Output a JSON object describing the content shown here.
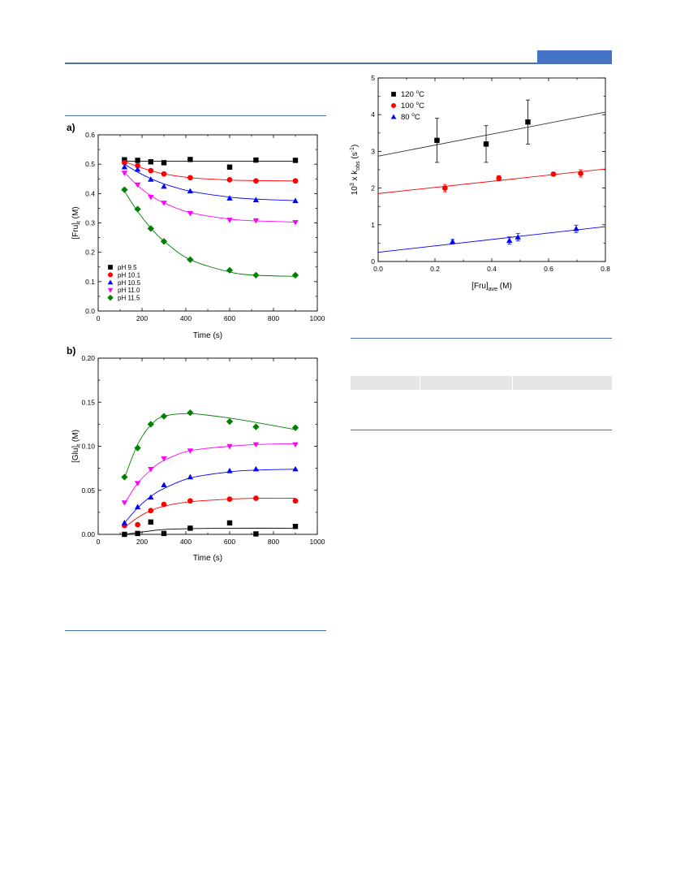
{
  "colors": {
    "rule": "#4a6fb0",
    "header_block": "#4472c4",
    "table_shade": "#e6e6e6"
  },
  "chart_data": [
    {
      "id": "a",
      "type": "scatter",
      "panel_label": "a)",
      "xlabel": "Time (s)",
      "ylabel_main": "[Fru]",
      "ylabel_sub": "t",
      "ylabel_unit": " (M)",
      "xlim": [
        0,
        1000
      ],
      "ylim": [
        0,
        0.6
      ],
      "xticks": [
        0,
        200,
        400,
        600,
        800,
        1000
      ],
      "yticks": [
        0.0,
        0.1,
        0.2,
        0.3,
        0.4,
        0.5,
        0.6
      ],
      "ytick_labels": [
        "0.0",
        "0.1",
        "0.2",
        "0.3",
        "0.4",
        "0.5",
        "0.6"
      ],
      "legend_position": "bottom-left",
      "grid": false,
      "series": [
        {
          "name": "pH 9.5",
          "marker": "square",
          "color": "#000000",
          "x": [
            120,
            180,
            240,
            300,
            420,
            600,
            720,
            900
          ],
          "y": [
            0.515,
            0.513,
            0.508,
            0.505,
            0.516,
            0.49,
            0.514,
            0.513
          ],
          "fit": [
            [
              120,
              0.51
            ],
            [
              900,
              0.51
            ]
          ]
        },
        {
          "name": "pH 10.1",
          "marker": "circle",
          "color": "#ff0000",
          "x": [
            120,
            180,
            240,
            300,
            420,
            600,
            720,
            900
          ],
          "y": [
            0.505,
            0.495,
            0.478,
            0.467,
            0.454,
            0.447,
            0.443,
            0.443
          ],
          "fit": [
            [
              120,
              0.509
            ],
            [
              180,
              0.492
            ],
            [
              240,
              0.478
            ],
            [
              300,
              0.467
            ],
            [
              420,
              0.454
            ],
            [
              600,
              0.446
            ],
            [
              720,
              0.444
            ],
            [
              900,
              0.443
            ]
          ]
        },
        {
          "name": "pH 10.5",
          "marker": "triangle-up",
          "color": "#0000ff",
          "x": [
            120,
            180,
            240,
            300,
            420,
            600,
            720,
            900
          ],
          "y": [
            0.49,
            0.482,
            0.448,
            0.424,
            0.408,
            0.384,
            0.378,
            0.375
          ],
          "fit": [
            [
              120,
              0.5
            ],
            [
              180,
              0.473
            ],
            [
              240,
              0.451
            ],
            [
              300,
              0.433
            ],
            [
              420,
              0.408
            ],
            [
              600,
              0.388
            ],
            [
              720,
              0.381
            ],
            [
              900,
              0.376
            ]
          ]
        },
        {
          "name": "pH 11.0",
          "marker": "triangle-down",
          "color": "#ff00ff",
          "x": [
            120,
            180,
            240,
            300,
            420,
            600,
            720,
            900
          ],
          "y": [
            0.47,
            0.43,
            0.388,
            0.368,
            0.333,
            0.31,
            0.308,
            0.302
          ],
          "fit": [
            [
              120,
              0.472
            ],
            [
              180,
              0.427
            ],
            [
              240,
              0.393
            ],
            [
              300,
              0.368
            ],
            [
              420,
              0.335
            ],
            [
              600,
              0.313
            ],
            [
              720,
              0.307
            ],
            [
              900,
              0.303
            ]
          ]
        },
        {
          "name": "pH 11.5",
          "marker": "diamond",
          "color": "#008000",
          "x": [
            120,
            180,
            240,
            300,
            420,
            600,
            720,
            900
          ],
          "y": [
            0.413,
            0.347,
            0.281,
            0.237,
            0.175,
            0.139,
            0.122,
            0.122
          ],
          "fit": [
            [
              120,
              0.408
            ],
            [
              180,
              0.339
            ],
            [
              240,
              0.283
            ],
            [
              300,
              0.238
            ],
            [
              420,
              0.175
            ],
            [
              600,
              0.133
            ],
            [
              720,
              0.122
            ],
            [
              900,
              0.118
            ]
          ]
        }
      ]
    },
    {
      "id": "b",
      "type": "scatter",
      "panel_label": "b)",
      "xlabel": "Time (s)",
      "ylabel_main": "[Glu]",
      "ylabel_sub": "t",
      "ylabel_unit": " (M)",
      "xlim": [
        0,
        1000
      ],
      "ylim": [
        0,
        0.2
      ],
      "xticks": [
        0,
        200,
        400,
        600,
        800,
        1000
      ],
      "yticks": [
        0.0,
        0.05,
        0.1,
        0.15,
        0.2
      ],
      "ytick_labels": [
        "0.00",
        "0.05",
        "0.10",
        "0.15",
        "0.20"
      ],
      "grid": false,
      "series": [
        {
          "name": "pH 9.5",
          "marker": "square",
          "color": "#000000",
          "x": [
            120,
            180,
            240,
            300,
            420,
            600,
            720,
            900
          ],
          "y": [
            0.0,
            0.001,
            0.014,
            0.001,
            0.007,
            0.013,
            0.0005,
            0.009
          ],
          "fit": [
            [
              120,
              0.0
            ],
            [
              180,
              0.002
            ],
            [
              240,
              0.004
            ],
            [
              300,
              0.0055
            ],
            [
              420,
              0.0065
            ],
            [
              600,
              0.007
            ],
            [
              900,
              0.007
            ]
          ]
        },
        {
          "name": "pH 10.1",
          "marker": "circle",
          "color": "#ff0000",
          "x": [
            120,
            180,
            240,
            300,
            420,
            600,
            720,
            900
          ],
          "y": [
            0.01,
            0.011,
            0.027,
            0.034,
            0.038,
            0.04,
            0.041,
            0.038
          ],
          "fit": [
            [
              120,
              0.008
            ],
            [
              180,
              0.019
            ],
            [
              240,
              0.027
            ],
            [
              300,
              0.032
            ],
            [
              420,
              0.037
            ],
            [
              600,
              0.04
            ],
            [
              720,
              0.041
            ],
            [
              900,
              0.041
            ]
          ]
        },
        {
          "name": "pH 10.5",
          "marker": "triangle-up",
          "color": "#0000ff",
          "x": [
            120,
            180,
            240,
            300,
            420,
            600,
            720,
            900
          ],
          "y": [
            0.013,
            0.031,
            0.042,
            0.056,
            0.065,
            0.072,
            0.074,
            0.074
          ],
          "fit": [
            [
              120,
              0.013
            ],
            [
              180,
              0.03
            ],
            [
              240,
              0.043
            ],
            [
              300,
              0.052
            ],
            [
              420,
              0.064
            ],
            [
              600,
              0.071
            ],
            [
              720,
              0.073
            ],
            [
              900,
              0.074
            ]
          ]
        },
        {
          "name": "pH 11.0",
          "marker": "triangle-down",
          "color": "#ff00ff",
          "x": [
            120,
            180,
            240,
            300,
            420,
            600,
            720,
            900
          ],
          "y": [
            0.036,
            0.058,
            0.074,
            0.086,
            0.095,
            0.1,
            0.102,
            0.102
          ],
          "fit": [
            [
              120,
              0.035
            ],
            [
              180,
              0.058
            ],
            [
              240,
              0.073
            ],
            [
              300,
              0.084
            ],
            [
              420,
              0.095
            ],
            [
              600,
              0.1
            ],
            [
              720,
              0.102
            ],
            [
              900,
              0.103
            ]
          ]
        },
        {
          "name": "pH 11.5",
          "marker": "diamond",
          "color": "#008000",
          "x": [
            120,
            180,
            240,
            300,
            420,
            600,
            720,
            900
          ],
          "y": [
            0.065,
            0.098,
            0.125,
            0.134,
            0.138,
            0.128,
            0.122,
            0.121
          ],
          "fit": [
            [
              120,
              0.064
            ],
            [
              180,
              0.102
            ],
            [
              240,
              0.124
            ],
            [
              300,
              0.134
            ],
            [
              420,
              0.137
            ],
            [
              600,
              0.132
            ],
            [
              720,
              0.127
            ],
            [
              900,
              0.119
            ]
          ]
        }
      ]
    },
    {
      "id": "c",
      "type": "scatter",
      "xlabel_main": "[Fru]",
      "xlabel_sub": "ave",
      "xlabel_unit": " (M)",
      "ylabel_pre": "10",
      "ylabel_sup": "3",
      "ylabel_mid": " x k",
      "ylabel_sub": "obs",
      "ylabel_unit": " (s",
      "ylabel_unit_sup": "-1",
      "ylabel_end": ")",
      "xlim": [
        0,
        0.8
      ],
      "ylim": [
        0,
        5
      ],
      "xticks": [
        0.0,
        0.2,
        0.4,
        0.6,
        0.8
      ],
      "xtick_labels": [
        "0.0",
        "0.2",
        "0.4",
        "0.6",
        "0.8"
      ],
      "yticks": [
        0,
        1,
        2,
        3,
        4,
        5
      ],
      "ytick_labels": [
        "0",
        "1",
        "2",
        "3",
        "4",
        "5"
      ],
      "legend_position": "top-left",
      "grid": false,
      "series": [
        {
          "name_pre": "120 ",
          "name_sup": "o",
          "name_post": "C",
          "marker": "square",
          "color": "#000000",
          "line": "#333333",
          "x": [
            0.207,
            0.38,
            0.527
          ],
          "y": [
            3.3,
            3.2,
            3.8
          ],
          "err": [
            0.6,
            0.5,
            0.6
          ],
          "fit": [
            [
              0,
              2.87
            ],
            [
              0.8,
              4.07
            ]
          ]
        },
        {
          "name_pre": "100 ",
          "name_sup": "o",
          "name_post": "C",
          "marker": "circle",
          "color": "#ff0000",
          "line": "#ff0000",
          "x": [
            0.235,
            0.425,
            0.617,
            0.713
          ],
          "y": [
            2.0,
            2.27,
            2.38,
            2.4
          ],
          "err": [
            0.1,
            0.07,
            0.05,
            0.1
          ],
          "fit": [
            [
              0,
              1.85
            ],
            [
              0.8,
              2.52
            ]
          ]
        },
        {
          "name_pre": "80 ",
          "name_sup": "o",
          "name_post": "C",
          "marker": "triangle-up",
          "color": "#0000ff",
          "line": "#0000ff",
          "x": [
            0.262,
            0.462,
            0.492,
            0.697
          ],
          "y": [
            0.54,
            0.57,
            0.66,
            0.89
          ],
          "err": [
            0.06,
            0.1,
            0.1,
            0.1
          ],
          "fit": [
            [
              0,
              0.25
            ],
            [
              0.8,
              0.95
            ]
          ]
        }
      ]
    }
  ]
}
